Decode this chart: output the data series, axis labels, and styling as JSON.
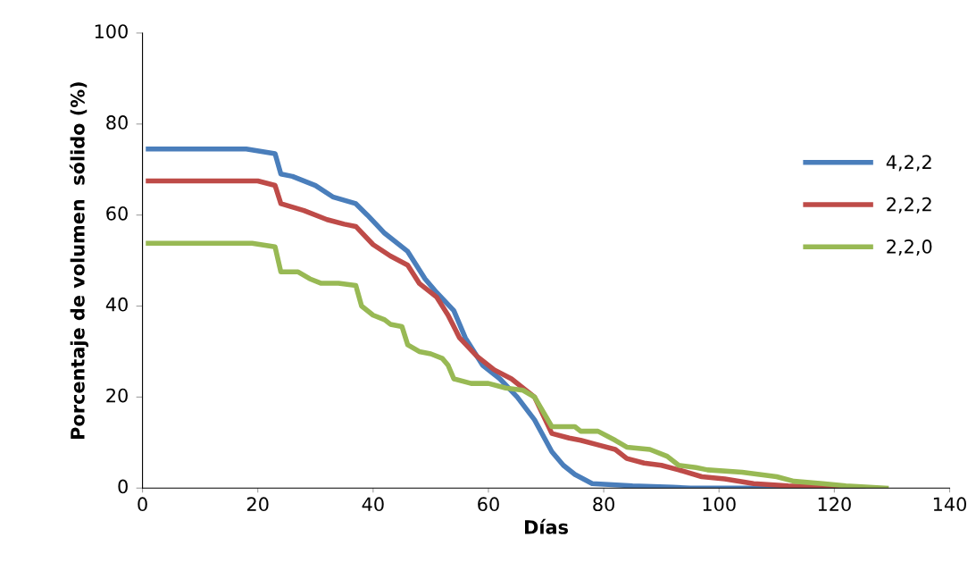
{
  "chart_data": {
    "type": "line",
    "xlabel": "Días",
    "ylabel": "Porcentaje de volumen  sólido (%)",
    "xlim": [
      0,
      140
    ],
    "xticks": [
      0,
      20,
      40,
      60,
      80,
      100,
      120,
      140
    ],
    "ylim": [
      0,
      100
    ],
    "yticks": [
      0,
      20,
      40,
      60,
      80,
      100
    ],
    "grid": false,
    "legend": "right",
    "marker": "none",
    "line_style": "solid",
    "series": [
      {
        "name": "4,2,2",
        "color": "#4a7ebb",
        "x": [
          1,
          18,
          23,
          24,
          26,
          30,
          33,
          37,
          39,
          42,
          46,
          49,
          51,
          54,
          56,
          59,
          62,
          65,
          68,
          71,
          73,
          75,
          78,
          85,
          92,
          95,
          125
        ],
        "values": [
          74.5,
          74.5,
          73.5,
          69,
          68.5,
          66.5,
          64,
          62.5,
          60,
          56,
          52,
          46,
          43,
          39,
          33,
          27,
          24,
          20,
          15,
          8,
          5,
          3,
          1,
          0.5,
          0.2,
          0,
          0
        ]
      },
      {
        "name": "2,2,2",
        "color": "#be4b48",
        "x": [
          1,
          20,
          23,
          24,
          28,
          32,
          35,
          37,
          40,
          43,
          46,
          48,
          51,
          53,
          55,
          58,
          61,
          64,
          66,
          68,
          71,
          74,
          76,
          79,
          82,
          84,
          87,
          90,
          93,
          97,
          101,
          106,
          112,
          124
        ],
        "values": [
          67.5,
          67.5,
          66.5,
          62.5,
          61,
          59,
          58,
          57.5,
          53.5,
          51,
          49,
          45,
          42,
          38,
          33,
          29,
          26,
          24,
          22,
          20,
          12,
          11,
          10.5,
          9.5,
          8.5,
          6.5,
          5.5,
          5,
          4,
          2.5,
          2,
          1,
          0.5,
          0
        ]
      },
      {
        "name": "2,2,0",
        "color": "#98b954",
        "x": [
          1,
          19,
          23,
          24,
          27,
          29,
          31,
          34,
          37,
          38,
          40,
          42,
          43,
          45,
          46,
          48,
          50,
          52,
          53,
          54,
          57,
          60,
          63,
          66,
          68,
          71,
          75,
          76,
          79,
          82,
          84,
          88,
          91,
          93,
          96,
          98,
          104,
          107,
          110,
          113,
          118,
          122,
          129
        ],
        "values": [
          53.8,
          53.8,
          53,
          47.5,
          47.5,
          46,
          45,
          45,
          44.5,
          40,
          38,
          37,
          36,
          35.5,
          31.5,
          30,
          29.5,
          28.5,
          27,
          24,
          23,
          23,
          22,
          21.5,
          20,
          13.5,
          13.5,
          12.5,
          12.5,
          10.5,
          9,
          8.5,
          7,
          5,
          4.5,
          4,
          3.5,
          3,
          2.5,
          1.5,
          1,
          0.5,
          0
        ]
      }
    ]
  }
}
